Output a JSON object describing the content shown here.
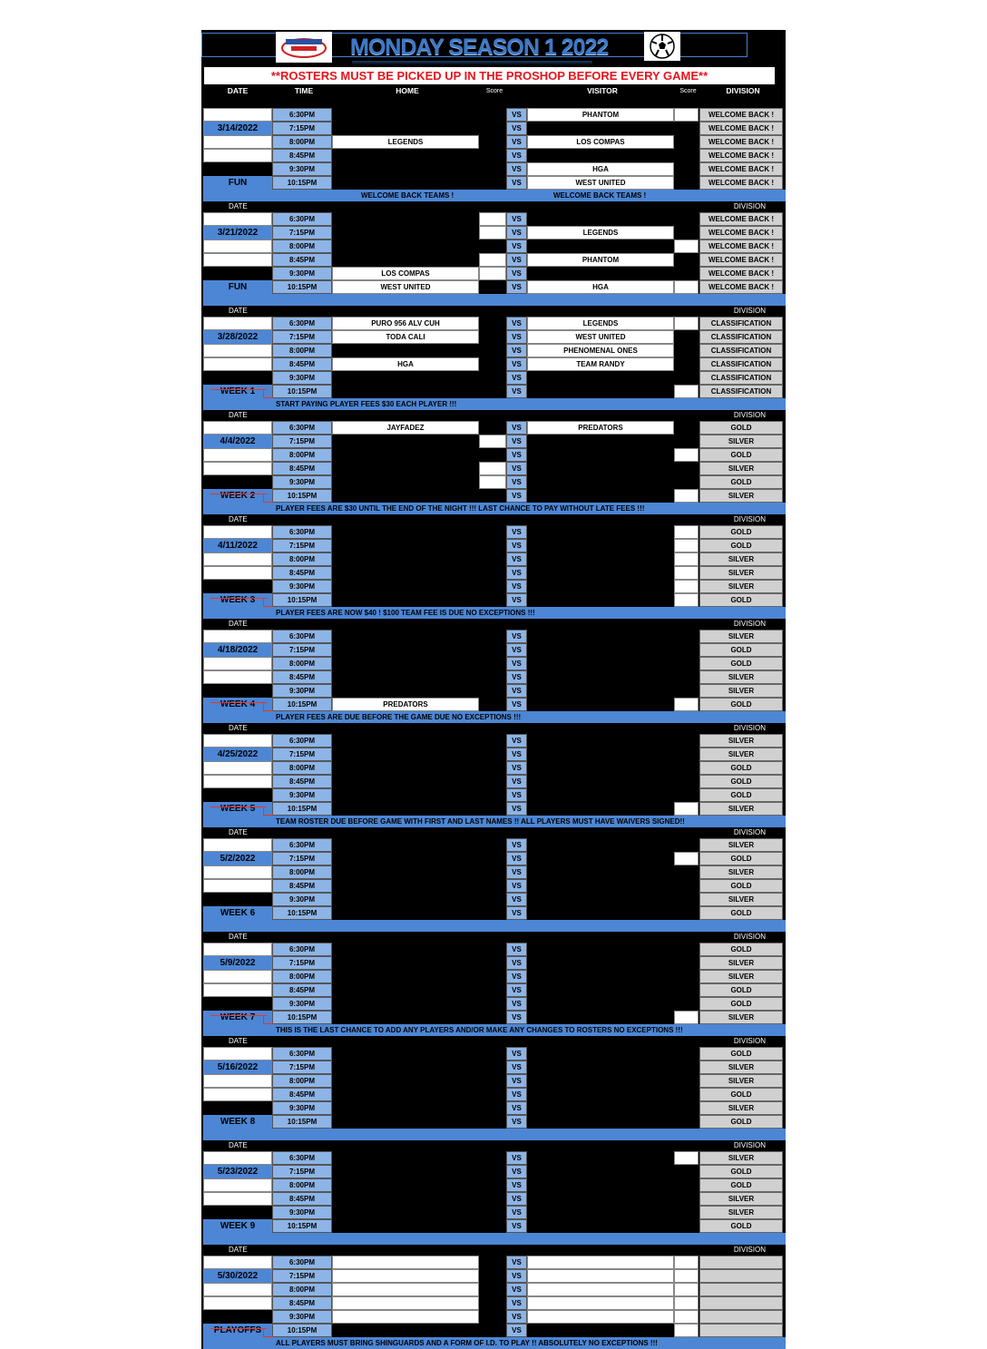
{
  "title": "MONDAY SEASON 1 2022",
  "notice": "**ROSTERS MUST BE PICKED UP IN THE PROSHOP BEFORE EVERY GAME**",
  "headers": {
    "date": "DATE",
    "time": "TIME",
    "home": "HOME",
    "score": "Score",
    "visitor": "VISITOR",
    "score2": "Score",
    "division": "DIVISION"
  },
  "colors": {
    "background": "#000000",
    "accent": "#4d86d4",
    "time_cell": "#8db4e6",
    "notice_text": "#e8141c",
    "division_cell": "#d0d0d0"
  },
  "icons": {
    "logo": "league-logo",
    "ball": "soccer-ball-icon"
  },
  "times": [
    "6:30PM",
    "7:15PM",
    "8:00PM",
    "8:45PM",
    "9:30PM",
    "10:15PM"
  ],
  "vs": "VS",
  "blocks": [
    {
      "date": "3/14/2022",
      "label": "FUN",
      "banner_left": "WELCOME BACK TEAMS !",
      "banner_right": "WELCOME BACK TEAMS !",
      "games": [
        {
          "home": null,
          "hs": null,
          "visitor": "PHANTOM",
          "vs": "",
          "division": "WELCOME BACK !"
        },
        {
          "home": null,
          "hs": null,
          "visitor": null,
          "vs": null,
          "division": "WELCOME BACK !"
        },
        {
          "home": "LEGENDS",
          "hs": null,
          "visitor": "LOS COMPAS",
          "vs": null,
          "division": "WELCOME BACK !"
        },
        {
          "home": null,
          "hs": null,
          "visitor": null,
          "vs": null,
          "division": "WELCOME BACK !"
        },
        {
          "home": null,
          "hs": null,
          "visitor": "HGA",
          "vs": null,
          "division": "WELCOME BACK !"
        },
        {
          "home": null,
          "hs": null,
          "visitor": "WEST UNITED",
          "vs": null,
          "division": "WELCOME BACK !"
        }
      ]
    },
    {
      "date": "3/21/2022",
      "label": "FUN",
      "date_label": "DATE",
      "division_label": "DIVISION",
      "games": [
        {
          "home": null,
          "hs": "",
          "visitor": null,
          "vs": null,
          "division": "WELCOME BACK !"
        },
        {
          "home": null,
          "hs": "",
          "visitor": "LEGENDS",
          "vs": null,
          "division": "WELCOME BACK !"
        },
        {
          "home": null,
          "hs": null,
          "visitor": null,
          "vs": "",
          "division": "WELCOME BACK !"
        },
        {
          "home": null,
          "hs": "",
          "visitor": "PHANTOM",
          "vs": null,
          "division": "WELCOME BACK !"
        },
        {
          "home": "LOS COMPAS",
          "hs": "",
          "visitor": null,
          "vs": null,
          "division": "WELCOME BACK !"
        },
        {
          "home": "WEST UNITED",
          "hs": null,
          "visitor": "HGA",
          "vs": "",
          "division": "WELCOME BACK !"
        }
      ]
    },
    {
      "date": "3/28/2022",
      "label": "WEEK 1",
      "date_label": "DATE",
      "division_label": "DIVISION",
      "banner": "START PAYING PLAYER FEES $30 EACH PLAYER !!!",
      "games": [
        {
          "home": "PURO 956 ALV CUH",
          "hs": null,
          "visitor": "LEGENDS",
          "vs": "",
          "division": "CLASSIFICATION"
        },
        {
          "home": "TODA CALI",
          "hs": null,
          "visitor": "WEST UNITED",
          "vs": null,
          "division": "CLASSIFICATION"
        },
        {
          "home": null,
          "hs": null,
          "visitor": "PHENOMENAL ONES",
          "vs": null,
          "division": "CLASSIFICATION"
        },
        {
          "home": "HGA",
          "hs": null,
          "visitor": "TEAM RANDY",
          "vs": null,
          "division": "CLASSIFICATION"
        },
        {
          "home": null,
          "hs": null,
          "visitor": null,
          "vs": null,
          "division": "CLASSIFICATION"
        },
        {
          "home": null,
          "hs": null,
          "visitor": null,
          "vs": "",
          "division": "CLASSIFICATION"
        }
      ]
    },
    {
      "date": "4/4/2022",
      "label": "WEEK 2",
      "date_label": "DATE",
      "division_label": "DIVISION",
      "banner": "PLAYER FEES ARE $30 UNTIL THE END OF THE NIGHT !!! LAST CHANCE TO PAY WITHOUT LATE FEES !!!",
      "games": [
        {
          "home": "JAYFADEZ",
          "hs": null,
          "visitor": "PREDATORS",
          "vs": null,
          "division": "GOLD"
        },
        {
          "home": null,
          "hs": "",
          "visitor": null,
          "vs": null,
          "division": "SILVER"
        },
        {
          "home": null,
          "hs": null,
          "visitor": null,
          "vs": "",
          "division": "GOLD"
        },
        {
          "home": null,
          "hs": "",
          "visitor": null,
          "vs": null,
          "division": "SILVER"
        },
        {
          "home": null,
          "hs": "",
          "visitor": null,
          "vs": null,
          "division": "GOLD"
        },
        {
          "home": null,
          "hs": null,
          "visitor": null,
          "vs": "",
          "division": "SILVER"
        }
      ]
    },
    {
      "date": "4/11/2022",
      "label": "WEEK 3",
      "date_label": "DATE",
      "division_label": "DIVISION",
      "banner": "PLAYER FEES ARE NOW $40 ! $100 TEAM FEE IS DUE NO EXCEPTIONS !!!",
      "games": [
        {
          "home": null,
          "hs": null,
          "visitor": null,
          "vs": "",
          "division": "GOLD"
        },
        {
          "home": null,
          "hs": null,
          "visitor": null,
          "vs": "",
          "division": "GOLD"
        },
        {
          "home": null,
          "hs": null,
          "visitor": null,
          "vs": "",
          "division": "SILVER"
        },
        {
          "home": null,
          "hs": null,
          "visitor": null,
          "vs": "",
          "division": "SILVER"
        },
        {
          "home": null,
          "hs": null,
          "visitor": null,
          "vs": "",
          "division": "SILVER"
        },
        {
          "home": null,
          "hs": null,
          "visitor": null,
          "vs": "",
          "division": "GOLD"
        }
      ]
    },
    {
      "date": "4/18/2022",
      "label": "WEEK 4",
      "date_label": "DATE",
      "division_label": "DIVISION",
      "banner": "PLAYER FEES ARE DUE BEFORE THE GAME DUE NO EXCEPTIONS !!!",
      "games": [
        {
          "home": null,
          "hs": null,
          "visitor": null,
          "vs": null,
          "division": "SILVER"
        },
        {
          "home": null,
          "hs": null,
          "visitor": null,
          "vs": null,
          "division": "GOLD"
        },
        {
          "home": null,
          "hs": null,
          "visitor": null,
          "vs": null,
          "division": "GOLD"
        },
        {
          "home": null,
          "hs": null,
          "visitor": null,
          "vs": null,
          "division": "SILVER"
        },
        {
          "home": null,
          "hs": null,
          "visitor": null,
          "vs": null,
          "division": "SILVER"
        },
        {
          "home": "PREDATORS",
          "hs": null,
          "visitor": null,
          "vs": "",
          "division": "GOLD"
        }
      ]
    },
    {
      "date": "4/25/2022",
      "label": "WEEK 5",
      "date_label": "DATE",
      "division_label": "DIVISION",
      "banner": "TEAM ROSTER DUE BEFORE GAME WITH FIRST AND LAST NAMES !! ALL PLAYERS MUST HAVE WAIVERS SIGNED!!",
      "games": [
        {
          "home": null,
          "hs": null,
          "visitor": null,
          "vs": null,
          "division": "SILVER"
        },
        {
          "home": null,
          "hs": null,
          "visitor": null,
          "vs": null,
          "division": "SILVER"
        },
        {
          "home": null,
          "hs": null,
          "visitor": null,
          "vs": null,
          "division": "GOLD"
        },
        {
          "home": null,
          "hs": null,
          "visitor": null,
          "vs": null,
          "division": "GOLD"
        },
        {
          "home": null,
          "hs": null,
          "visitor": null,
          "vs": null,
          "division": "GOLD"
        },
        {
          "home": null,
          "hs": null,
          "visitor": null,
          "vs": "",
          "division": "SILVER"
        }
      ]
    },
    {
      "date": "5/2/2022",
      "label": "WEEK 6",
      "date_label": "DATE",
      "division_label": "DIVISION",
      "noarrow": true,
      "games": [
        {
          "home": null,
          "hs": null,
          "visitor": null,
          "vs": null,
          "division": "SILVER"
        },
        {
          "home": null,
          "hs": null,
          "visitor": null,
          "vs": "",
          "division": "GOLD"
        },
        {
          "home": null,
          "hs": null,
          "visitor": null,
          "vs": null,
          "division": "SILVER"
        },
        {
          "home": null,
          "hs": null,
          "visitor": null,
          "vs": null,
          "division": "GOLD"
        },
        {
          "home": null,
          "hs": null,
          "visitor": null,
          "vs": null,
          "division": "SILVER"
        },
        {
          "home": null,
          "hs": null,
          "visitor": null,
          "vs": null,
          "division": "GOLD"
        }
      ]
    },
    {
      "date": "5/9/2022",
      "label": "WEEK 7",
      "date_label": "DATE",
      "division_label": "DIVISION",
      "banner": "THIS IS THE LAST CHANCE TO ADD ANY PLAYERS AND/OR MAKE ANY CHANGES TO ROSTERS NO EXCEPTIONS !!!",
      "games": [
        {
          "home": null,
          "hs": null,
          "visitor": null,
          "vs": null,
          "division": "GOLD"
        },
        {
          "home": null,
          "hs": null,
          "visitor": null,
          "vs": null,
          "division": "SILVER"
        },
        {
          "home": null,
          "hs": null,
          "visitor": null,
          "vs": null,
          "division": "SILVER"
        },
        {
          "home": null,
          "hs": null,
          "visitor": null,
          "vs": null,
          "division": "GOLD"
        },
        {
          "home": null,
          "hs": null,
          "visitor": null,
          "vs": null,
          "division": "GOLD"
        },
        {
          "home": null,
          "hs": null,
          "visitor": null,
          "vs": "",
          "division": "SILVER"
        }
      ]
    },
    {
      "date": "5/16/2022",
      "label": "WEEK 8",
      "date_label": "DATE",
      "division_label": "DIVISION",
      "noarrow": true,
      "games": [
        {
          "home": null,
          "hs": null,
          "visitor": null,
          "vs": null,
          "division": "GOLD"
        },
        {
          "home": null,
          "hs": null,
          "visitor": null,
          "vs": null,
          "division": "SILVER"
        },
        {
          "home": null,
          "hs": null,
          "visitor": null,
          "vs": null,
          "division": "SILVER"
        },
        {
          "home": null,
          "hs": null,
          "visitor": null,
          "vs": null,
          "division": "GOLD"
        },
        {
          "home": null,
          "hs": null,
          "visitor": null,
          "vs": null,
          "division": "SILVER"
        },
        {
          "home": null,
          "hs": null,
          "visitor": null,
          "vs": null,
          "division": "GOLD"
        }
      ]
    },
    {
      "date": "5/23/2022",
      "label": "WEEK 9",
      "date_label": "DATE",
      "division_label": "DIVISION",
      "noarrow": true,
      "games": [
        {
          "home": null,
          "hs": null,
          "visitor": null,
          "vs": "",
          "division": "SILVER"
        },
        {
          "home": null,
          "hs": null,
          "visitor": null,
          "vs": null,
          "division": "GOLD"
        },
        {
          "home": null,
          "hs": null,
          "visitor": null,
          "vs": null,
          "division": "GOLD"
        },
        {
          "home": null,
          "hs": null,
          "visitor": null,
          "vs": null,
          "division": "SILVER"
        },
        {
          "home": null,
          "hs": null,
          "visitor": null,
          "vs": null,
          "division": "SILVER"
        },
        {
          "home": null,
          "hs": null,
          "visitor": null,
          "vs": null,
          "division": "GOLD"
        }
      ]
    },
    {
      "date": "5/30/2022",
      "label": "PLAYOFFS",
      "date_label": "DATE",
      "division_label": "DIVISION",
      "banner": "ALL PLAYERS MUST BRING SHINGUARDS AND A FORM OF I.D. TO PLAY !! ABSOLUTELY NO EXCEPTIONS !!!",
      "games": [
        {
          "home": "",
          "hs": null,
          "visitor": "",
          "vs": "",
          "division": ""
        },
        {
          "home": "",
          "hs": null,
          "visitor": "",
          "vs": "",
          "division": ""
        },
        {
          "home": "",
          "hs": null,
          "visitor": "",
          "vs": "",
          "division": ""
        },
        {
          "home": "",
          "hs": null,
          "visitor": "",
          "vs": "",
          "division": ""
        },
        {
          "home": "",
          "hs": null,
          "visitor": "",
          "vs": "",
          "division": ""
        },
        {
          "home": null,
          "hs": null,
          "visitor": null,
          "vs": "",
          "division": ""
        }
      ]
    }
  ]
}
